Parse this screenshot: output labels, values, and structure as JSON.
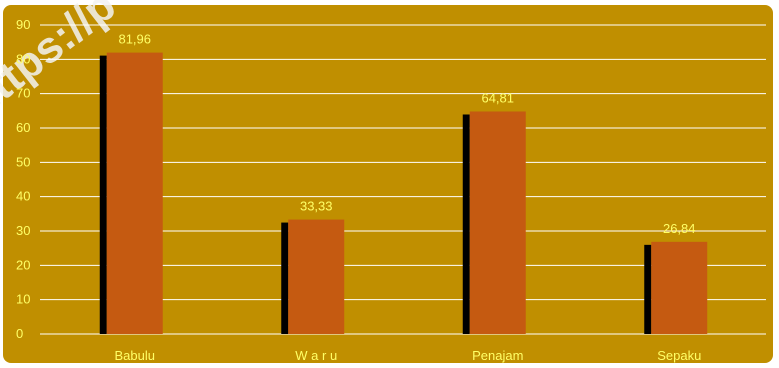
{
  "chart_data": {
    "type": "bar",
    "categories": [
      "Babulu",
      "W a r u",
      "Penajam",
      "Sepaku"
    ],
    "values": [
      81.96,
      33.33,
      64.81,
      26.84
    ],
    "data_labels": [
      "81,96",
      "33,33",
      "64,81",
      "26,84"
    ],
    "ylim": [
      0,
      90
    ],
    "yticks": [
      0,
      10,
      20,
      30,
      40,
      50,
      60,
      70,
      80,
      90
    ],
    "grid": true,
    "colors": {
      "bar": "#c55a11",
      "shadow": "#000000",
      "background": "#c08f00",
      "gridline": "#ffffff",
      "text": "#ffff66"
    }
  },
  "watermark": {
    "text": "https://p"
  }
}
